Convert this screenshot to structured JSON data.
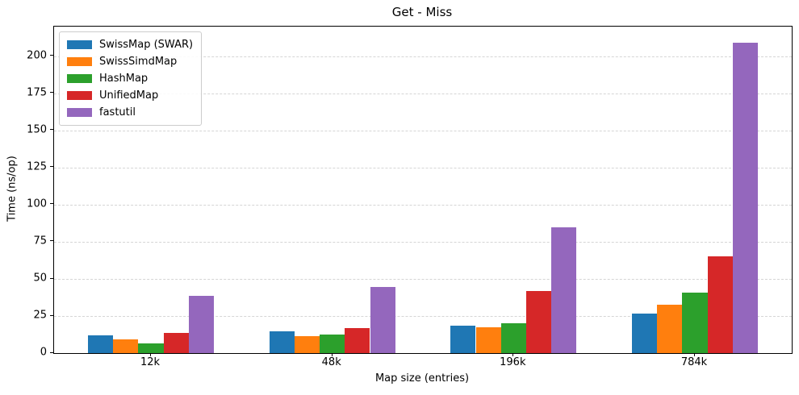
{
  "chart_data": {
    "type": "bar",
    "title": "Get - Miss",
    "xlabel": "Map size (entries)",
    "ylabel": "Time (ns/op)",
    "categories": [
      "12k",
      "48k",
      "196k",
      "784k"
    ],
    "series": [
      {
        "name": "SwissMap (SWAR)",
        "color": "#1f77b4",
        "values": [
          12,
          14.5,
          18.5,
          26.5
        ]
      },
      {
        "name": "SwissSimdMap",
        "color": "#ff7f0e",
        "values": [
          9.5,
          11.5,
          17.5,
          32.5
        ]
      },
      {
        "name": "HashMap",
        "color": "#2ca02c",
        "values": [
          6.5,
          12.5,
          20,
          41
        ]
      },
      {
        "name": "UnifiedMap",
        "color": "#d62728",
        "values": [
          13.5,
          17,
          42,
          65
        ]
      },
      {
        "name": "fastutil",
        "color": "#9467bd",
        "values": [
          38.5,
          44.5,
          85,
          209
        ]
      }
    ],
    "ylim": [
      0,
      220
    ],
    "yticks": [
      0,
      25,
      50,
      75,
      100,
      125,
      150,
      175,
      200
    ],
    "grid": true,
    "grid_axis": "y",
    "legend_position": "upper left"
  }
}
